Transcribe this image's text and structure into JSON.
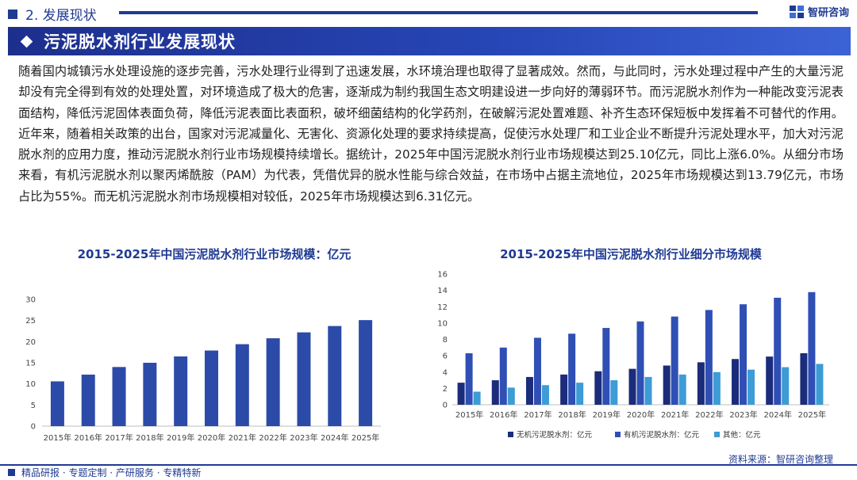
{
  "header": {
    "section_label": "2. 发展现状",
    "brand_name": "智研咨询",
    "page_title": "污泥脱水剂行业发展现状"
  },
  "body_text": "随着国内城镇污水处理设施的逐步完善，污水处理行业得到了迅速发展，水环境治理也取得了显著成效。然而，与此同时，污水处理过程中产生的大量污泥却没有完全得到有效的处理处置，对环境造成了极大的危害，逐渐成为制约我国生态文明建设进一步向好的薄弱环节。而污泥脱水剂作为一种能改变污泥表面结构，降低污泥固体表面负荷，降低污泥表面比表面积，破坏细菌结构的化学药剂，在破解污泥处置难题、补齐生态环保短板中发挥着不可替代的作用。近年来，随着相关政策的出台，国家对污泥减量化、无害化、资源化处理的要求持续提高，促使污水处理厂和工业企业不断提升污泥处理水平，加大对污泥脱水剂的应用力度，推动污泥脱水剂行业市场规模持续增长。据统计，2025年中国污泥脱水剂行业市场规模达到25.10亿元，同比上涨6.0%。从细分市场来看，有机污泥脱水剂以聚丙烯酰胺（PAM）为代表，凭借优异的脱水性能与综合效益，在市场中占据主流地位，2025年市场规模达到13.79亿元，市场占比为55%。而无机污泥脱水剂市场规模相对较低，2025年市场规模达到6.31亿元。",
  "source": "资料来源：智研咨询整理",
  "footer": "精品研报 · 专题定制 · 产研服务 · 专精特新",
  "colors": {
    "primary": "#1f3a93",
    "bar_total": "#2c4ba8",
    "inorganic": "#1a2c7a",
    "organic": "#2f4fb5",
    "other": "#3d9bd6"
  },
  "chart_data": [
    {
      "type": "bar",
      "title": "2015-2025年中国污泥脱水剂行业市场规模：亿元",
      "categories": [
        "2015年",
        "2016年",
        "2017年",
        "2018年",
        "2019年",
        "2020年",
        "2021年",
        "2022年",
        "2023年",
        "2024年",
        "2025年"
      ],
      "values": [
        10.6,
        12.2,
        14.0,
        15.0,
        16.5,
        17.9,
        19.4,
        20.8,
        22.2,
        23.7,
        25.1
      ],
      "ylim": [
        0,
        30
      ],
      "yticks": [
        0,
        5,
        10,
        15,
        20,
        25,
        30
      ],
      "grid": false
    },
    {
      "type": "bar",
      "title": "2015-2025年中国污泥脱水剂行业细分市场规模",
      "categories": [
        "2015年",
        "2016年",
        "2017年",
        "2018年",
        "2019年",
        "2020年",
        "2021年",
        "2022年",
        "2023年",
        "2024年",
        "2025年"
      ],
      "series": [
        {
          "name": "无机污泥脱水剂：亿元",
          "values": [
            2.7,
            3.0,
            3.4,
            3.7,
            4.1,
            4.4,
            4.8,
            5.2,
            5.6,
            5.9,
            6.31
          ]
        },
        {
          "name": "有机污泥脱水剂：亿元",
          "values": [
            6.3,
            7.0,
            8.2,
            8.7,
            9.4,
            10.2,
            10.8,
            11.6,
            12.3,
            13.1,
            13.79
          ]
        },
        {
          "name": "其他：亿元",
          "values": [
            1.6,
            2.1,
            2.4,
            2.7,
            3.0,
            3.4,
            3.7,
            4.0,
            4.3,
            4.6,
            5.0
          ]
        }
      ],
      "ylim": [
        0,
        16
      ],
      "yticks": [
        0,
        2,
        4,
        6,
        8,
        10,
        12,
        14,
        16
      ],
      "legend_position": "bottom",
      "grid": false
    }
  ]
}
